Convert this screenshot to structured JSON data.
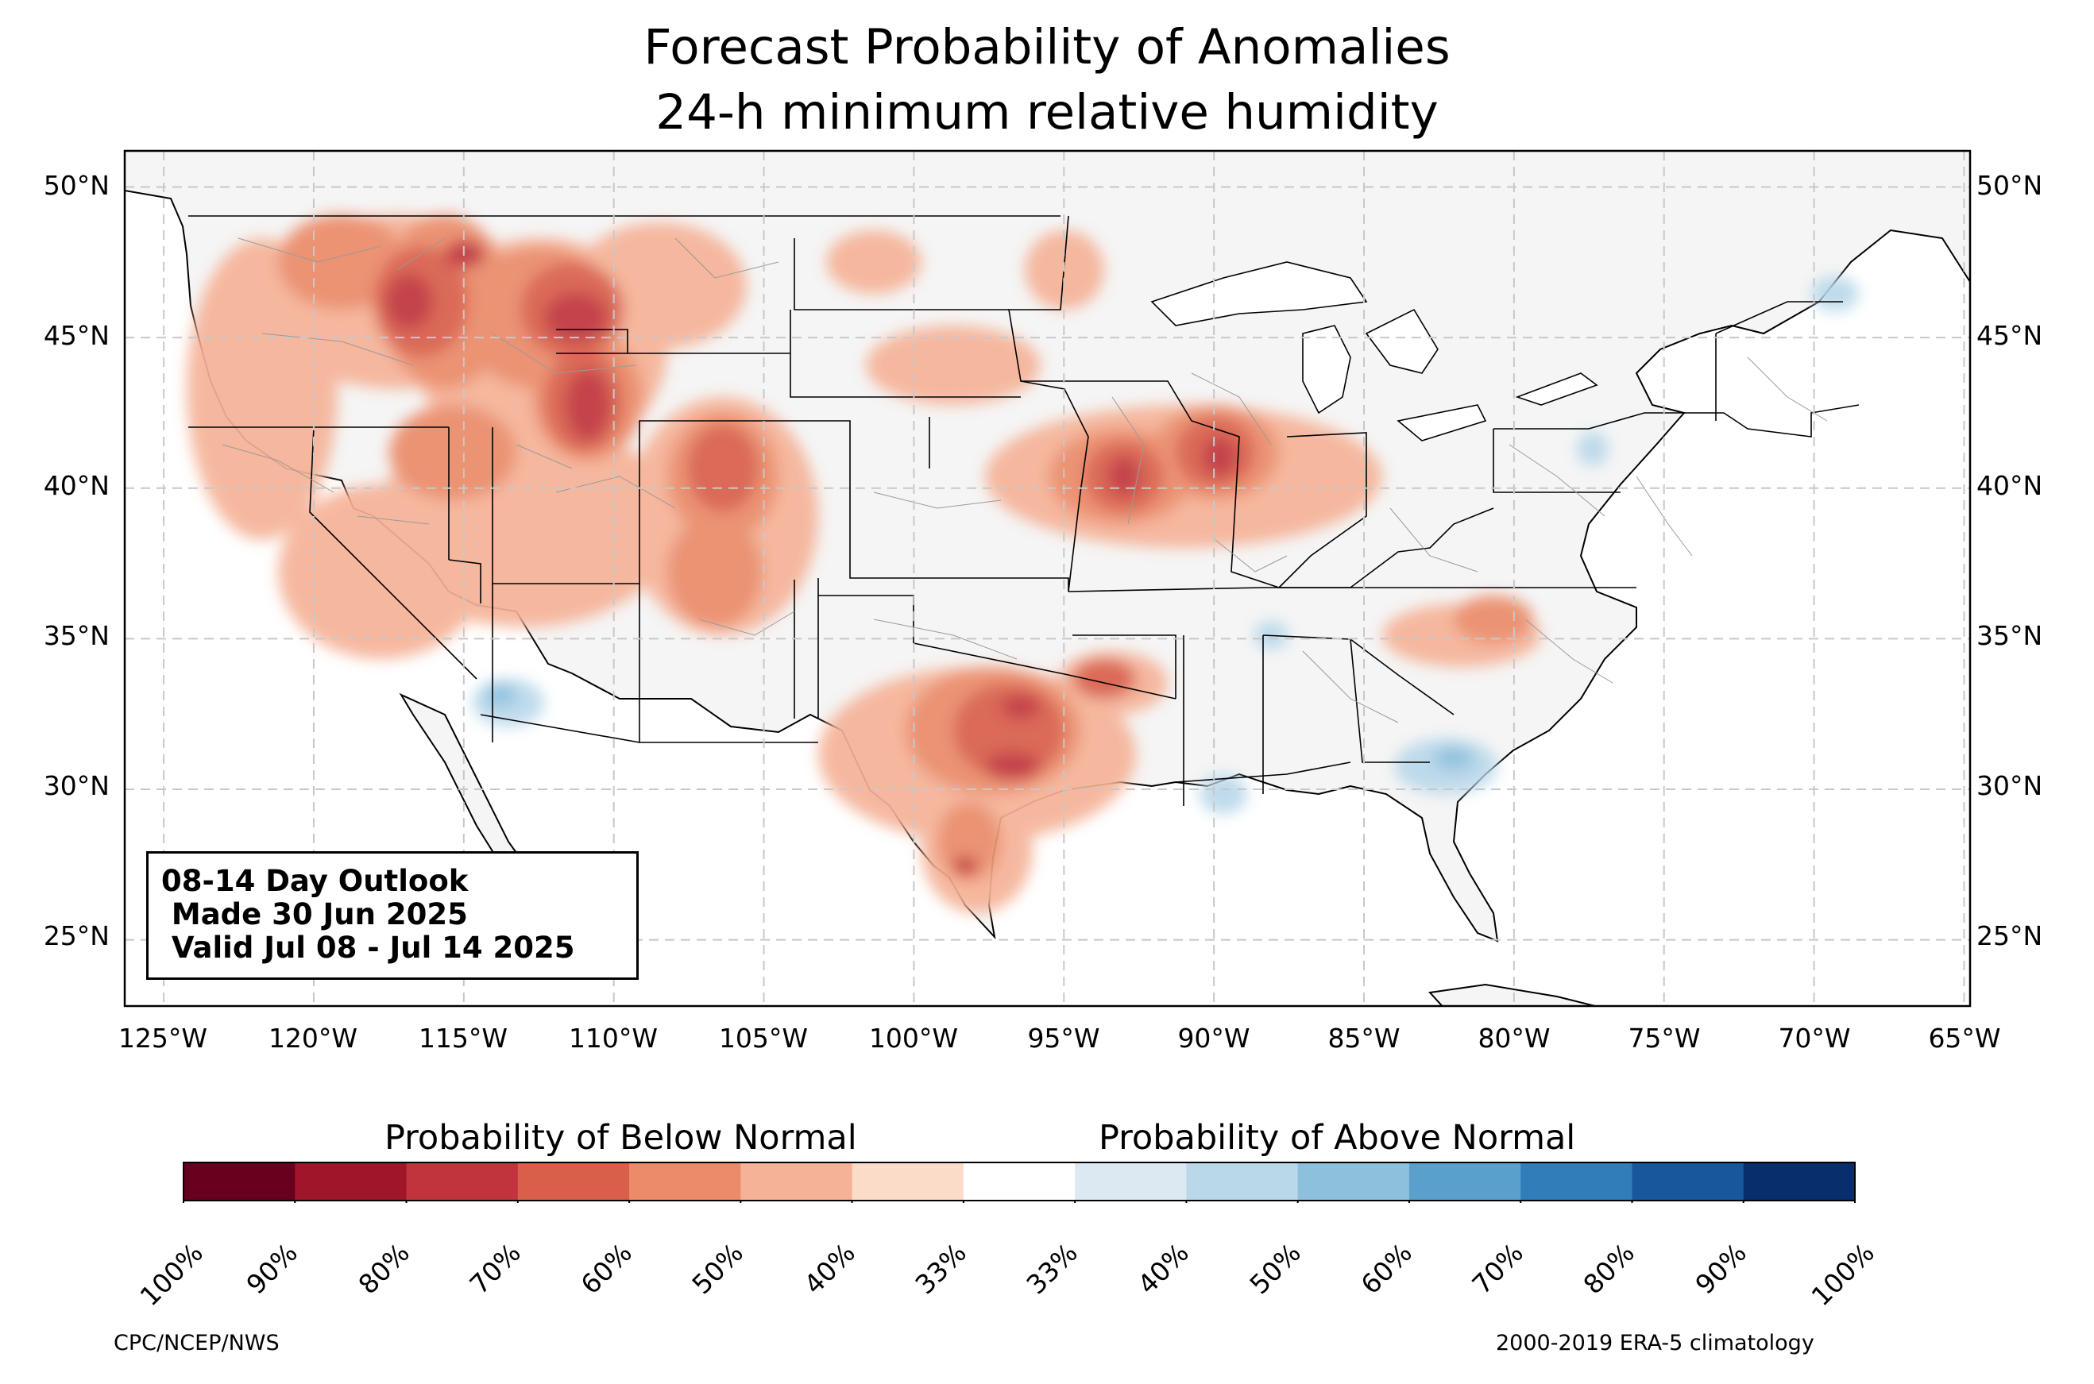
{
  "title": {
    "line1": "Forecast Probability of Anomalies",
    "line2": "24-h minimum relative humidity"
  },
  "map": {
    "lat_ticks": [
      "50°N",
      "45°N",
      "40°N",
      "35°N",
      "30°N",
      "25°N"
    ],
    "lon_ticks": [
      "125°W",
      "120°W",
      "115°W",
      "110°W",
      "105°W",
      "100°W",
      "95°W",
      "90°W",
      "85°W",
      "80°W",
      "75°W",
      "70°W",
      "65°W"
    ],
    "lon_range": [
      -126.3,
      -64.8
    ],
    "lat_range": [
      22.8,
      51.2
    ],
    "gridlines": true,
    "land_color": "#f5f5f5",
    "regions": [
      {
        "name": "Pacific Northwest",
        "category": "below",
        "probability": "50-60%"
      },
      {
        "name": "Idaho / Western Montana",
        "category": "below",
        "probability": "70-80%"
      },
      {
        "name": "Wyoming",
        "category": "below",
        "probability": "70-80%"
      },
      {
        "name": "Colorado",
        "category": "below",
        "probability": "50-60%"
      },
      {
        "name": "Iowa / Missouri",
        "category": "below",
        "probability": "60-70%"
      },
      {
        "name": "Illinois",
        "category": "below",
        "probability": "60-70%"
      },
      {
        "name": "Central Texas / Oklahoma",
        "category": "below",
        "probability": "70-80%"
      },
      {
        "name": "Southern Arizona",
        "category": "above",
        "probability": "40-50%"
      },
      {
        "name": "Georgia / Carolinas coast",
        "category": "above",
        "probability": "40-50%"
      },
      {
        "name": "Southern Louisiana",
        "category": "above",
        "probability": "33-40%"
      },
      {
        "name": "Pennsylvania / New England",
        "category": "above",
        "probability": "33-40%"
      }
    ]
  },
  "outlook_box": {
    "line1": "08-14 Day Outlook",
    "line2": " Made 30 Jun 2025",
    "line3": " Valid Jul 08 - Jul 14 2025"
  },
  "colorbar": {
    "below_label": "Probability of Below Normal",
    "above_label": "Probability of Above Normal",
    "ticks": [
      "100%",
      "90%",
      "80%",
      "70%",
      "60%",
      "50%",
      "40%",
      "33%",
      "33%",
      "40%",
      "50%",
      "60%",
      "70%",
      "80%",
      "90%",
      "100%"
    ],
    "colors": [
      "#67001f",
      "#9e1628",
      "#c1343e",
      "#d95f4b",
      "#eb8b69",
      "#f5b297",
      "#fbdcc8",
      "#ffffff",
      "#dde9f2",
      "#b9d8ea",
      "#8dc0dd",
      "#5aa0cd",
      "#307dba",
      "#19579c",
      "#082e6b"
    ]
  },
  "footer": {
    "left": "CPC/NCEP/NWS",
    "right": "2000-2019 ERA-5 climatology"
  }
}
